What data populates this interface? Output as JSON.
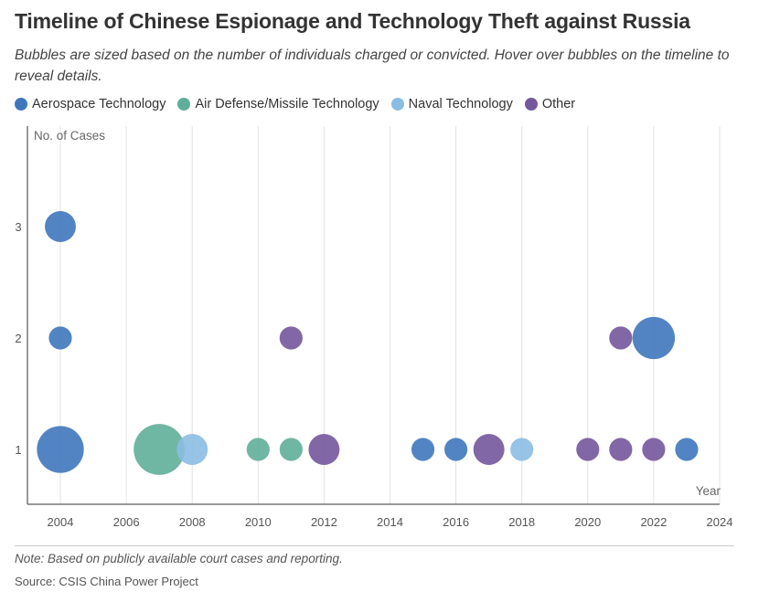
{
  "title": "Timeline of Chinese Espionage and Technology Theft against Russia",
  "subtitle": "Bubbles are sized based on the number of individuals charged or convicted. Hover over bubbles on the timeline to reveal details.",
  "legend": [
    {
      "name": "Aerospace Technology",
      "color": "#3f77bd"
    },
    {
      "name": "Air Defense/Missile Technology",
      "color": "#5fae99"
    },
    {
      "name": "Naval Technology",
      "color": "#8bbde3"
    },
    {
      "name": "Other",
      "color": "#74579c"
    }
  ],
  "note": "Note: Based on publicly available court cases and reporting.",
  "source": "Source: CSIS China Power Project",
  "chart_data": {
    "type": "scatter",
    "title": "Timeline of Chinese Espionage and Technology Theft against Russia",
    "xlabel": "Year",
    "ylabel": "No. of Cases",
    "xlim": [
      2003,
      2024
    ],
    "ylim": [
      0.5,
      3.85
    ],
    "x_ticks": [
      2004,
      2006,
      2008,
      2010,
      2012,
      2014,
      2016,
      2018,
      2020,
      2022,
      2024
    ],
    "y_ticks": [
      1,
      2,
      3
    ],
    "grid": "vertical",
    "legend_position": "top-left",
    "size_encoding": "number of individuals charged or convicted (relative)",
    "series": [
      {
        "name": "Aerospace Technology",
        "color": "#3f77bd",
        "points": [
          {
            "x": 2004,
            "y": 3,
            "size": 2
          },
          {
            "x": 2004,
            "y": 2,
            "size": 1
          },
          {
            "x": 2004,
            "y": 1,
            "size": 5
          },
          {
            "x": 2015,
            "y": 1,
            "size": 1
          },
          {
            "x": 2016,
            "y": 1,
            "size": 1
          },
          {
            "x": 2022,
            "y": 2,
            "size": 4
          },
          {
            "x": 2023,
            "y": 1,
            "size": 1
          }
        ]
      },
      {
        "name": "Air Defense/Missile Technology",
        "color": "#5fae99",
        "points": [
          {
            "x": 2007,
            "y": 1,
            "size": 6
          },
          {
            "x": 2010,
            "y": 1,
            "size": 1
          },
          {
            "x": 2011,
            "y": 1,
            "size": 1
          }
        ]
      },
      {
        "name": "Naval Technology",
        "color": "#8bbde3",
        "points": [
          {
            "x": 2008,
            "y": 1,
            "size": 2
          },
          {
            "x": 2018,
            "y": 1,
            "size": 1
          }
        ]
      },
      {
        "name": "Other",
        "color": "#74579c",
        "points": [
          {
            "x": 2011,
            "y": 2,
            "size": 1
          },
          {
            "x": 2012,
            "y": 1,
            "size": 2
          },
          {
            "x": 2017,
            "y": 1,
            "size": 2
          },
          {
            "x": 2020,
            "y": 1,
            "size": 1
          },
          {
            "x": 2021,
            "y": 2,
            "size": 1
          },
          {
            "x": 2021,
            "y": 1,
            "size": 1
          },
          {
            "x": 2022,
            "y": 1,
            "size": 1
          }
        ]
      }
    ]
  }
}
